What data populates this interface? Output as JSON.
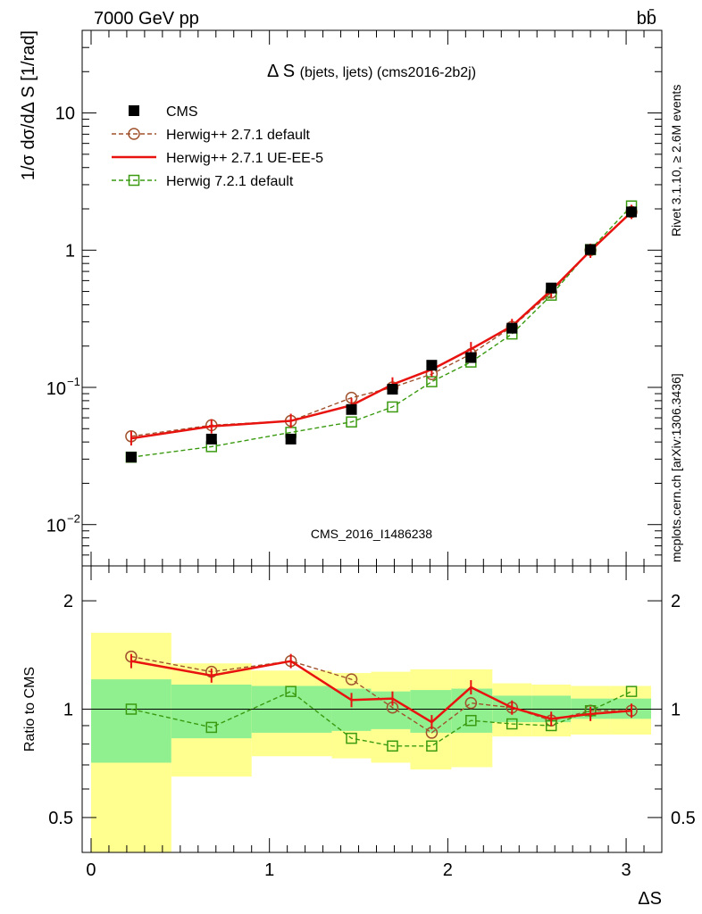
{
  "header": {
    "left": "7000 GeV pp",
    "right": "bb̄"
  },
  "side_labels": {
    "rivet": "Rivet 3.1.10, ≥ 2.6M events",
    "mcplots": "mcplots.cern.ch [arXiv:1306.3436]"
  },
  "chart_data": [
    {
      "type": "line",
      "title": "Δ S (bjets, ljets) (cms2016-2b2j)",
      "title_main": "Δ S",
      "title_sub": "(bjets, ljets) (cms2016-2b2j)",
      "ylabel": "1/σ dσ/dΔ S [1/rad]",
      "yscale": "log",
      "ylim": [
        0.005,
        40
      ],
      "xlim": [
        -0.05,
        3.2
      ],
      "yticks": [
        {
          "value": 0.01,
          "base": "10",
          "exp": "−2"
        },
        {
          "value": 0.1,
          "base": "10",
          "exp": "−1"
        },
        {
          "value": 1,
          "label": "1"
        },
        {
          "value": 10,
          "label": "10"
        }
      ],
      "watermark": "CMS_2016_I1486238",
      "legend_position": "top-left",
      "x": [
        0.225,
        0.675,
        1.12,
        1.46,
        1.69,
        1.91,
        2.13,
        2.36,
        2.58,
        2.8,
        3.03
      ],
      "series": [
        {
          "name": "CMS",
          "color": "#000000",
          "marker": "square-filled",
          "values": [
            0.031,
            0.042,
            0.042,
            0.069,
            0.097,
            0.145,
            0.165,
            0.27,
            0.53,
            1.01,
            1.9
          ]
        },
        {
          "name": "Herwig++ 2.7.1 default",
          "color": "#a0522d",
          "marker": "circle-open",
          "dashed": true,
          "values": [
            0.044,
            0.053,
            0.057,
            0.084,
            0.1,
            0.125,
            0.175,
            0.276,
            0.49,
            1.0,
            1.9
          ]
        },
        {
          "name": "Herwig++ 2.7.1 UE-EE-5",
          "color": "#e8130f",
          "marker": "none",
          "dashed": false,
          "values": [
            0.0425,
            0.052,
            0.057,
            0.074,
            0.105,
            0.135,
            0.19,
            0.28,
            0.51,
            0.99,
            1.9
          ]
        },
        {
          "name": "Herwig 7.2.1 default",
          "color": "#3a9a10",
          "marker": "square-open",
          "dashed": true,
          "values": [
            0.031,
            0.037,
            0.047,
            0.056,
            0.072,
            0.11,
            0.153,
            0.245,
            0.47,
            1.01,
            2.1
          ]
        }
      ]
    },
    {
      "type": "line",
      "ylabel": "Ratio to CMS",
      "xlabel": "ΔS",
      "yscale": "log",
      "ylim": [
        0.4,
        2.5
      ],
      "xlim": [
        -0.05,
        3.2
      ],
      "yticks": [
        {
          "value": 0.5,
          "label": "0.5"
        },
        {
          "value": 1,
          "label": "1"
        },
        {
          "value": 2,
          "label": "2"
        }
      ],
      "xticks": [
        {
          "value": 0,
          "label": "0"
        },
        {
          "value": 1,
          "label": "1"
        },
        {
          "value": 2,
          "label": "2"
        },
        {
          "value": 3,
          "label": "3"
        }
      ],
      "bin_edges": [
        0.0,
        0.45,
        0.9,
        1.35,
        1.57,
        1.79,
        2.02,
        2.25,
        2.47,
        2.69,
        2.91,
        3.14
      ],
      "band_1sigma": [
        [
          0.71,
          1.21
        ],
        [
          0.83,
          1.17
        ],
        [
          0.86,
          1.16
        ],
        [
          0.87,
          1.14
        ],
        [
          0.88,
          1.12
        ],
        [
          0.86,
          1.13
        ],
        [
          0.86,
          1.14
        ],
        [
          0.92,
          1.09
        ],
        [
          0.92,
          1.09
        ],
        [
          0.94,
          1.07
        ],
        [
          0.94,
          1.07
        ]
      ],
      "band_2sigma": [
        [
          0.4,
          1.63
        ],
        [
          0.65,
          1.34
        ],
        [
          0.74,
          1.28
        ],
        [
          0.73,
          1.26
        ],
        [
          0.71,
          1.27
        ],
        [
          0.68,
          1.29
        ],
        [
          0.69,
          1.29
        ],
        [
          0.84,
          1.18
        ],
        [
          0.84,
          1.17
        ],
        [
          0.85,
          1.16
        ],
        [
          0.85,
          1.16
        ]
      ],
      "x": [
        0.225,
        0.675,
        1.12,
        1.46,
        1.69,
        1.91,
        2.13,
        2.36,
        2.58,
        2.8,
        3.03
      ],
      "series": [
        {
          "name": "Herwig++ 2.7.1 default",
          "color": "#a0522d",
          "marker": "circle-open",
          "dashed": true,
          "values": [
            1.4,
            1.27,
            1.36,
            1.21,
            1.01,
            0.86,
            1.04,
            1.01,
            0.93,
            0.99,
            0.99
          ]
        },
        {
          "name": "Herwig++ 2.7.1 UE-EE-5",
          "color": "#e8130f",
          "marker": "none",
          "dashed": false,
          "values": [
            1.36,
            1.24,
            1.36,
            1.06,
            1.07,
            0.92,
            1.15,
            1.01,
            0.94,
            0.97,
            0.99
          ]
        },
        {
          "name": "Herwig 7.2.1 default",
          "color": "#3a9a10",
          "marker": "square-open",
          "dashed": true,
          "values": [
            1.0,
            0.89,
            1.12,
            0.83,
            0.79,
            0.79,
            0.93,
            0.91,
            0.9,
            0.99,
            1.12
          ]
        }
      ],
      "band_colors": {
        "one_sigma": "#90f090",
        "two_sigma": "#ffff90"
      }
    }
  ]
}
